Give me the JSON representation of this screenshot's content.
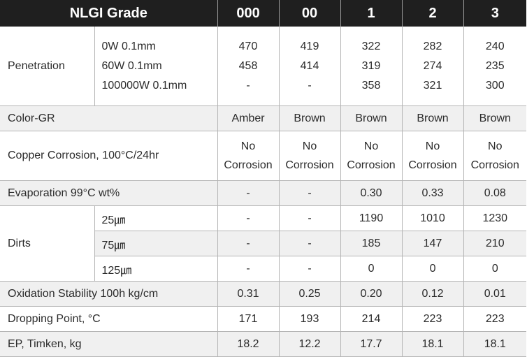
{
  "header": {
    "grade_label": "NLGI Grade",
    "grades": [
      "000",
      "00",
      "1",
      "2",
      "3"
    ]
  },
  "penetration": {
    "label": "Penetration",
    "subs": [
      "0W 0.1mm",
      "60W 0.1mm",
      "100000W 0.1mm"
    ],
    "values": [
      [
        "470",
        "458",
        "-"
      ],
      [
        "419",
        "414",
        "-"
      ],
      [
        "322",
        "319",
        "358"
      ],
      [
        "282",
        "274",
        "321"
      ],
      [
        "240",
        "235",
        "300"
      ]
    ]
  },
  "color": {
    "label": "Color-GR",
    "values": [
      "Amber",
      "Brown",
      "Brown",
      "Brown",
      "Brown"
    ]
  },
  "copper": {
    "label": "Copper Corrosion, 100°C/24hr",
    "line1": "No",
    "line2": "Corrosion"
  },
  "evaporation": {
    "label": "Evaporation 99°C wt%",
    "values": [
      "-",
      "-",
      "0.30",
      "0.33",
      "0.08"
    ]
  },
  "dirts": {
    "label": "Dirts",
    "rows": [
      {
        "sub": "25㎛",
        "values": [
          "-",
          "-",
          "1190",
          "1010",
          "1230"
        ]
      },
      {
        "sub": "75㎛",
        "values": [
          "-",
          "-",
          "185",
          "147",
          "210"
        ]
      },
      {
        "sub": "125㎛",
        "values": [
          "-",
          "-",
          "0",
          "0",
          "0"
        ]
      }
    ]
  },
  "oxidation": {
    "label": "Oxidation Stability 100h kg/cm",
    "values": [
      "0.31",
      "0.25",
      "0.20",
      "0.12",
      "0.01"
    ]
  },
  "dropping": {
    "label": "Dropping Point, °C",
    "values": [
      "171",
      "193",
      "214",
      "223",
      "223"
    ]
  },
  "ep": {
    "label": "EP, Timken, kg",
    "values": [
      "18.2",
      "12.2",
      "17.7",
      "18.1",
      "18.1"
    ]
  }
}
